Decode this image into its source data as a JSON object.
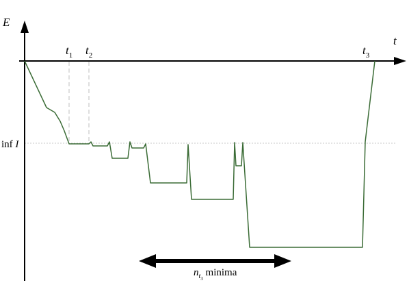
{
  "diagram": {
    "axis_vertical_label": "E",
    "axis_horizontal_label": "t",
    "time_markers": [
      {
        "base": "t",
        "sub": "1"
      },
      {
        "base": "t",
        "sub": "2"
      },
      {
        "base": "t",
        "sub": "3"
      }
    ],
    "inf_label_prefix": "inf ",
    "inf_label_var": "I",
    "minima_label_base": "n",
    "minima_label_sub_base": "t",
    "minima_label_sub_index": "3",
    "minima_label_suffix": " minima"
  },
  "colors": {
    "axis": "#000000",
    "curve": "#3a6b35",
    "dashed": "#bfbfbf",
    "inf_line": "#c8c8c8",
    "arrow": "#000000"
  }
}
